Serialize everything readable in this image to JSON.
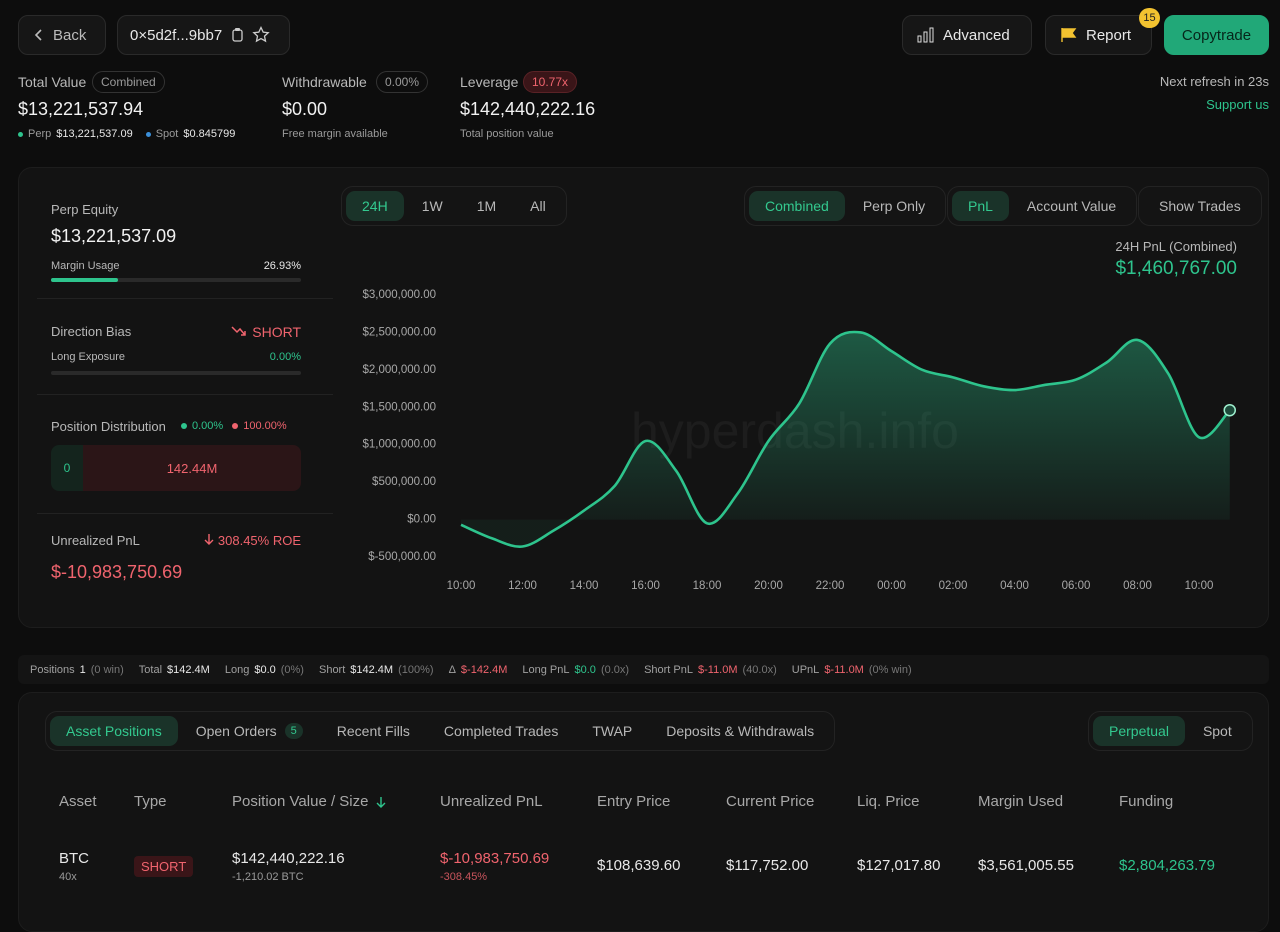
{
  "header": {
    "back": "Back",
    "address": "0×5d2f...9bb7",
    "advanced": "Advanced",
    "report": "Report",
    "report_badge": "15",
    "copytrade": "Copytrade"
  },
  "summary": {
    "total_value": {
      "label": "Total Value",
      "tag": "Combined",
      "value": "$13,221,537.94",
      "perp_label": "Perp",
      "perp_value": "$13,221,537.09",
      "spot_label": "Spot",
      "spot_value": "$0.845799"
    },
    "withdrawable": {
      "label": "Withdrawable",
      "tag": "0.00%",
      "value": "$0.00",
      "note": "Free margin available"
    },
    "leverage": {
      "label": "Leverage",
      "tag": "10.77x",
      "value": "$142,440,222.16",
      "note": "Total position value"
    },
    "refresh": "Next refresh in 23s",
    "support": "Support us"
  },
  "equity_panel": {
    "perp_equity_label": "Perp Equity",
    "perp_equity": "$13,221,537.09",
    "margin_usage_label": "Margin Usage",
    "margin_usage": "26.93%",
    "direction_bias_label": "Direction Bias",
    "direction_bias": "SHORT",
    "long_exposure_label": "Long Exposure",
    "long_exposure": "0.00%",
    "distribution_label": "Position Distribution",
    "distribution_long": "0.00%",
    "distribution_short": "100.00%",
    "distribution_long_value": "0",
    "distribution_short_value": "142.44M",
    "upnl_label": "Unrealized PnL",
    "upnl_roe": "308.45% ROE",
    "upnl": "$-10,983,750.69"
  },
  "chart_controls": {
    "ranges": [
      "24H",
      "1W",
      "1M",
      "All"
    ],
    "scopes": [
      "Combined",
      "Perp Only"
    ],
    "metrics": [
      "PnL",
      "Account Value"
    ],
    "show_trades": "Show Trades"
  },
  "chart_data": {
    "type": "area",
    "title": "24H PnL (Combined)",
    "headline": "$1,460,767.00",
    "watermark": "hyperdash.info",
    "color": "#2ec48d",
    "categories": [
      "10:00",
      null,
      "12:00",
      null,
      "14:00",
      null,
      "16:00",
      null,
      "18:00",
      null,
      "20:00",
      null,
      "22:00",
      null,
      "00:00",
      null,
      "02:00",
      null,
      "04:00",
      null,
      "06:00",
      null,
      "08:00",
      null,
      "10:00",
      null
    ],
    "values": [
      -70000,
      -250000,
      -360000,
      -150000,
      120000,
      450000,
      1050000,
      650000,
      -50000,
      350000,
      1050000,
      1550000,
      2350000,
      2500000,
      2250000,
      2000000,
      1900000,
      1780000,
      1730000,
      1800000,
      1870000,
      2100000,
      2400000,
      1950000,
      1100000,
      1460767
    ],
    "ylim": [
      -500000,
      3000000
    ],
    "yticks": [
      {
        "value": -500000,
        "label": "$-500,000.00"
      },
      {
        "value": 0,
        "label": "$0.00"
      },
      {
        "value": 500000,
        "label": "$500,000.00"
      },
      {
        "value": 1000000,
        "label": "$1,000,000.00"
      },
      {
        "value": 1500000,
        "label": "$1,500,000.00"
      },
      {
        "value": 2000000,
        "label": "$2,000,000.00"
      },
      {
        "value": 2500000,
        "label": "$2,500,000.00"
      },
      {
        "value": 3000000,
        "label": "$3,000,000.00"
      }
    ]
  },
  "stats": [
    {
      "label": "Positions",
      "value": "1",
      "note": "(0 win)",
      "color": "#e8e8e8"
    },
    {
      "label": "Total",
      "value": "$142.4M",
      "color": "#e8e8e8"
    },
    {
      "label": "Long",
      "value": "$0.0",
      "note": "(0%)",
      "color": "#e8e8e8"
    },
    {
      "label": "Short",
      "value": "$142.4M",
      "note": "(100%)",
      "color": "#e8e8e8"
    },
    {
      "label": "Δ",
      "value": "$-142.4M",
      "color": "#f0646e"
    },
    {
      "label": "Long PnL",
      "value": "$0.0",
      "note": "(0.0x)",
      "color": "#2ec48d"
    },
    {
      "label": "Short PnL",
      "value": "$-11.0M",
      "note": "(40.0x)",
      "color": "#f0646e"
    },
    {
      "label": "UPnL",
      "value": "$-11.0M",
      "note": "(0% win)",
      "color": "#f0646e"
    }
  ],
  "tabs": {
    "main": [
      "Asset Positions",
      "Open Orders",
      "Recent Fills",
      "Completed Trades",
      "TWAP",
      "Deposits & Withdrawals"
    ],
    "open_orders_badge": "5",
    "market": [
      "Perpetual",
      "Spot"
    ]
  },
  "table": {
    "columns": [
      "Asset",
      "Type",
      "Position Value / Size",
      "Unrealized PnL",
      "Entry Price",
      "Current Price",
      "Liq. Price",
      "Margin Used",
      "Funding"
    ],
    "rows": [
      {
        "asset": "BTC",
        "leverage": "40x",
        "type": "SHORT",
        "position_value": "$142,440,222.16",
        "size": "-1,210.02 BTC",
        "upnl": "$-10,983,750.69",
        "upnl_pct": "-308.45%",
        "entry": "$108,639.60",
        "current": "$117,752.00",
        "liq": "$127,017.80",
        "margin": "$3,561,005.55",
        "funding": "$2,804,263.79"
      }
    ]
  }
}
